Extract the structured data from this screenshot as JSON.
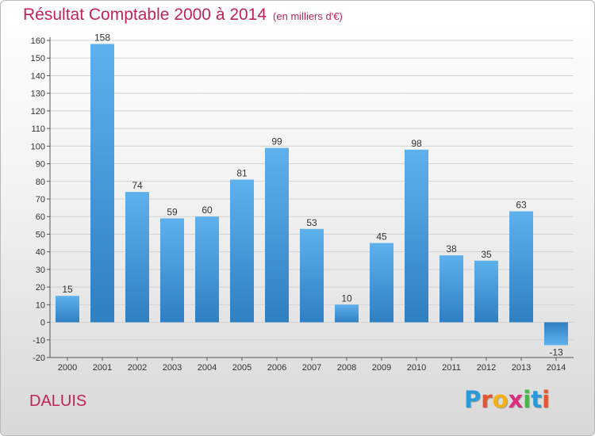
{
  "chart_data": {
    "type": "bar",
    "title": "Résultat Comptable 2000 à 2014",
    "subtitle": "(en milliers d'€)",
    "categories": [
      "2000",
      "2001",
      "2002",
      "2003",
      "2004",
      "2005",
      "2006",
      "2007",
      "2008",
      "2009",
      "2010",
      "2011",
      "2012",
      "2013",
      "2014"
    ],
    "values": [
      15,
      158,
      74,
      59,
      60,
      81,
      99,
      53,
      10,
      45,
      98,
      38,
      35,
      63,
      -13
    ],
    "ylim": [
      -20,
      160
    ],
    "yticks": [
      -20,
      -10,
      0,
      10,
      20,
      30,
      40,
      50,
      60,
      70,
      80,
      90,
      100,
      110,
      120,
      130,
      140,
      150,
      160
    ],
    "xlabel": "",
    "ylabel": "",
    "grid": true,
    "bar_color_light": "#5eb1ec",
    "bar_color_dark": "#2f7fc3"
  },
  "commune": "DALUIS",
  "logo": {
    "letters": [
      "P",
      "r",
      "o",
      "x",
      "i",
      "t",
      "i"
    ],
    "colors": [
      "#2a9ad8",
      "#e8542c",
      "#f2b116",
      "#d9307e",
      "#49b548",
      "#2a9ad8",
      "#e8542c"
    ]
  },
  "colors": {
    "title": "#c0245b"
  }
}
